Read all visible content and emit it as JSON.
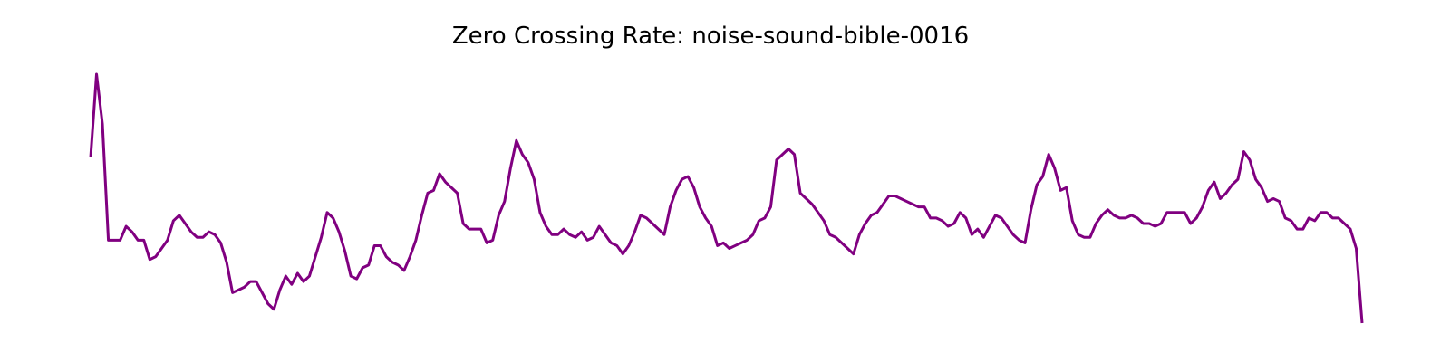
{
  "chart_data": {
    "type": "line",
    "title": "Zero Crossing Rate: noise-sound-bible-0016",
    "xlabel": "",
    "ylabel": "",
    "axes_visible": false,
    "grid": false,
    "line_color": "#800080",
    "series": [
      {
        "values": [
          0.43,
          0.73,
          0.55,
          0.13,
          0.13,
          0.13,
          0.18,
          0.16,
          0.13,
          0.13,
          0.06,
          0.07,
          0.1,
          0.13,
          0.2,
          0.22,
          0.19,
          0.16,
          0.14,
          0.14,
          0.16,
          0.15,
          0.12,
          0.05,
          -0.06,
          -0.05,
          -0.04,
          -0.02,
          -0.02,
          -0.06,
          -0.1,
          -0.12,
          -0.05,
          0.0,
          -0.03,
          0.01,
          -0.02,
          0.0,
          0.07,
          0.14,
          0.23,
          0.21,
          0.16,
          0.09,
          0.0,
          -0.01,
          0.03,
          0.04,
          0.11,
          0.11,
          0.07,
          0.05,
          0.04,
          0.02,
          0.07,
          0.13,
          0.22,
          0.3,
          0.31,
          0.37,
          0.34,
          0.32,
          0.3,
          0.19,
          0.17,
          0.17,
          0.17,
          0.12,
          0.13,
          0.22,
          0.27,
          0.39,
          0.49,
          0.44,
          0.41,
          0.35,
          0.23,
          0.18,
          0.15,
          0.15,
          0.17,
          0.15,
          0.14,
          0.16,
          0.13,
          0.14,
          0.18,
          0.15,
          0.12,
          0.11,
          0.08,
          0.11,
          0.16,
          0.22,
          0.21,
          0.19,
          0.17,
          0.15,
          0.25,
          0.31,
          0.35,
          0.36,
          0.32,
          0.25,
          0.21,
          0.18,
          0.11,
          0.12,
          0.1,
          0.11,
          0.12,
          0.13,
          0.15,
          0.2,
          0.21,
          0.25,
          0.42,
          0.44,
          0.46,
          0.44,
          0.3,
          0.28,
          0.26,
          0.23,
          0.2,
          0.15,
          0.14,
          0.12,
          0.1,
          0.08,
          0.15,
          0.19,
          0.22,
          0.23,
          0.26,
          0.29,
          0.29,
          0.28,
          0.27,
          0.26,
          0.25,
          0.25,
          0.21,
          0.21,
          0.2,
          0.18,
          0.19,
          0.23,
          0.21,
          0.15,
          0.17,
          0.14,
          0.18,
          0.22,
          0.21,
          0.18,
          0.15,
          0.13,
          0.12,
          0.24,
          0.33,
          0.36,
          0.44,
          0.39,
          0.31,
          0.32,
          0.2,
          0.15,
          0.14,
          0.14,
          0.19,
          0.22,
          0.24,
          0.22,
          0.21,
          0.21,
          0.22,
          0.21,
          0.19,
          0.19,
          0.18,
          0.19,
          0.23,
          0.23,
          0.23,
          0.23,
          0.19,
          0.21,
          0.25,
          0.31,
          0.34,
          0.28,
          0.3,
          0.33,
          0.35,
          0.45,
          0.42,
          0.35,
          0.32,
          0.27,
          0.28,
          0.27,
          0.21,
          0.2,
          0.17,
          0.17,
          0.21,
          0.2,
          0.23,
          0.23,
          0.21,
          0.21,
          0.19,
          0.17,
          0.1,
          -0.17
        ]
      }
    ]
  }
}
